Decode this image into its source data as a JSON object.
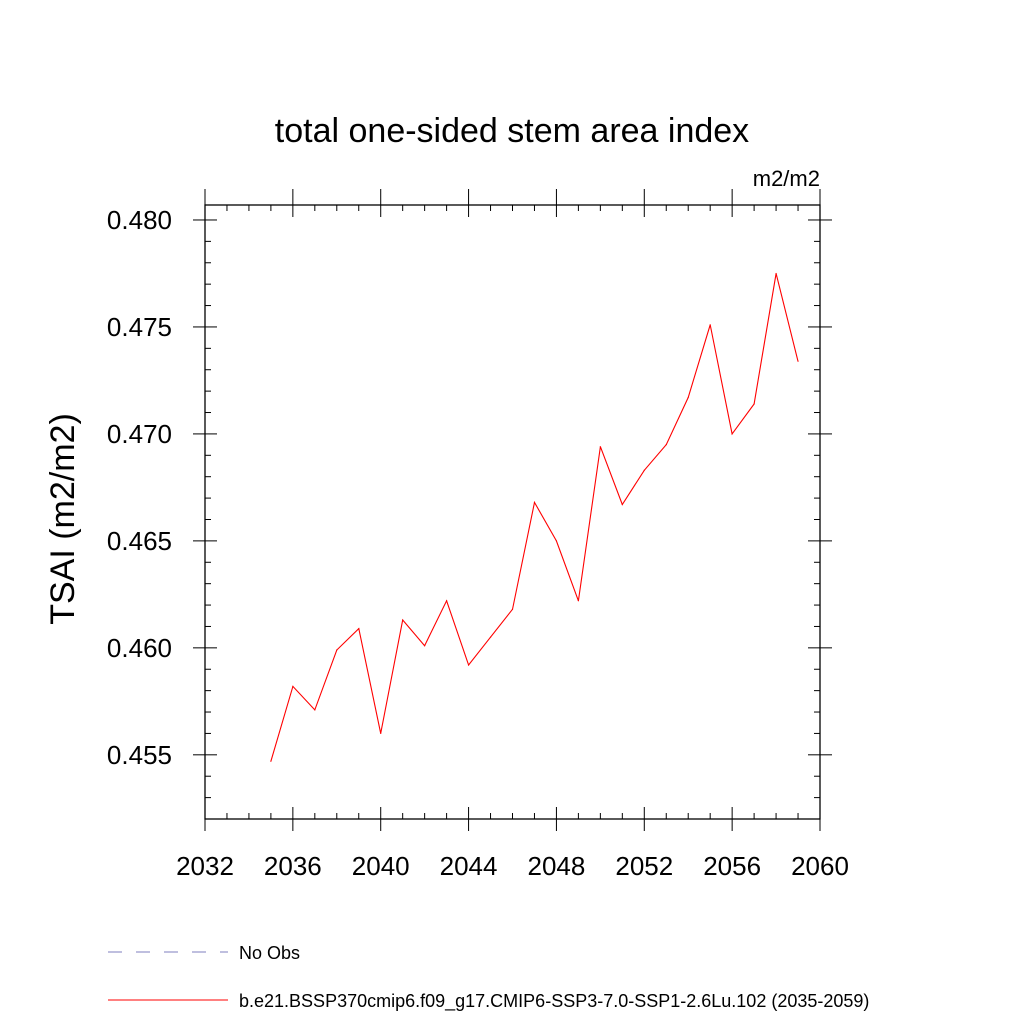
{
  "chart_data": {
    "type": "line",
    "title": "total one-sided stem area index",
    "units": "m2/m2",
    "ylabel": "TSAI  (m2/m2)",
    "xlabel": "",
    "xlim": [
      2032,
      2060
    ],
    "ylim": [
      0.452,
      0.4807
    ],
    "xticks": [
      2032,
      2036,
      2040,
      2044,
      2048,
      2052,
      2056,
      2060
    ],
    "xtick_labels": [
      "2032",
      "2036",
      "2040",
      "2044",
      "2048",
      "2052",
      "2056",
      "2060"
    ],
    "yticks": [
      0.455,
      0.46,
      0.465,
      0.47,
      0.475,
      0.48
    ],
    "ytick_labels": [
      "0.455",
      "0.460",
      "0.465",
      "0.470",
      "0.475",
      "0.480"
    ],
    "grid": false,
    "legend_position": "bottom",
    "series": [
      {
        "name": "No Obs",
        "color": "#7f7fbf",
        "dash": true,
        "x": [],
        "y": []
      },
      {
        "name": "b.e21.BSSP370cmip6.f09_g17.CMIP6-SSP3-7.0-SSP1-2.6Lu.102 (2035-2059)",
        "color": "#ff0000",
        "dash": false,
        "x": [
          2035,
          2036,
          2037,
          2038,
          2039,
          2040,
          2041,
          2042,
          2043,
          2044,
          2045,
          2046,
          2047,
          2048,
          2049,
          2050,
          2051,
          2052,
          2053,
          2054,
          2055,
          2056,
          2057,
          2058,
          2059
        ],
        "y": [
          0.4547,
          0.4582,
          0.4571,
          0.4599,
          0.4609,
          0.456,
          0.4613,
          0.4601,
          0.4622,
          0.4592,
          0.4605,
          0.4618,
          0.4668,
          0.465,
          0.4622,
          0.4694,
          0.4667,
          0.4683,
          0.4695,
          0.4717,
          0.4751,
          0.47,
          0.4714,
          0.4775,
          0.4734
        ]
      }
    ]
  }
}
